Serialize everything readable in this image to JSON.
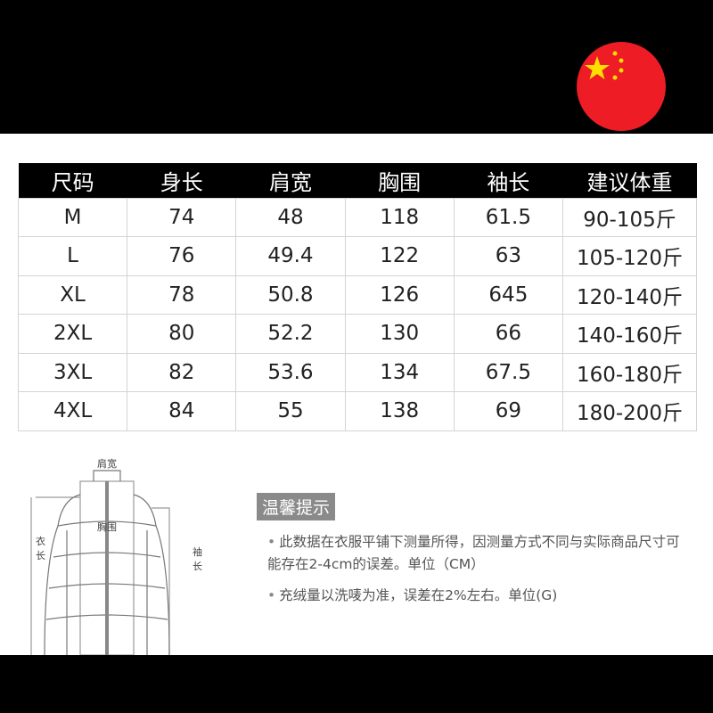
{
  "flag": {
    "colors": {
      "red": "#ee1c25",
      "star": "#ffde00"
    }
  },
  "table": {
    "headers": [
      "尺码",
      "身长",
      "肩宽",
      "胸围",
      "袖长",
      "建议体重"
    ],
    "rows": [
      [
        "M",
        "74",
        "48",
        "118",
        "61.5",
        "90-105斤"
      ],
      [
        "L",
        "76",
        "49.4",
        "122",
        "63",
        "105-120斤"
      ],
      [
        "XL",
        "78",
        "50.8",
        "126",
        "645",
        "120-140斤"
      ],
      [
        "2XL",
        "80",
        "52.2",
        "130",
        "66",
        "140-160斤"
      ],
      [
        "3XL",
        "82",
        "53.6",
        "134",
        "67.5",
        "160-180斤"
      ],
      [
        "4XL",
        "84",
        "55",
        "138",
        "69",
        "180-200斤"
      ]
    ]
  },
  "diagram": {
    "shoulder": "肩宽",
    "chest": "胸围",
    "length": "衣长",
    "sleeve": "袖长"
  },
  "tips": {
    "title": "温馨提示",
    "items": [
      "此数据在衣服平铺下测量所得，因测量方式不同与实际商品尺寸可能存在2-4cm的误差。单位（CM）",
      "充绒量以洗唛为准，误差在2%左右。单位(G)"
    ]
  }
}
